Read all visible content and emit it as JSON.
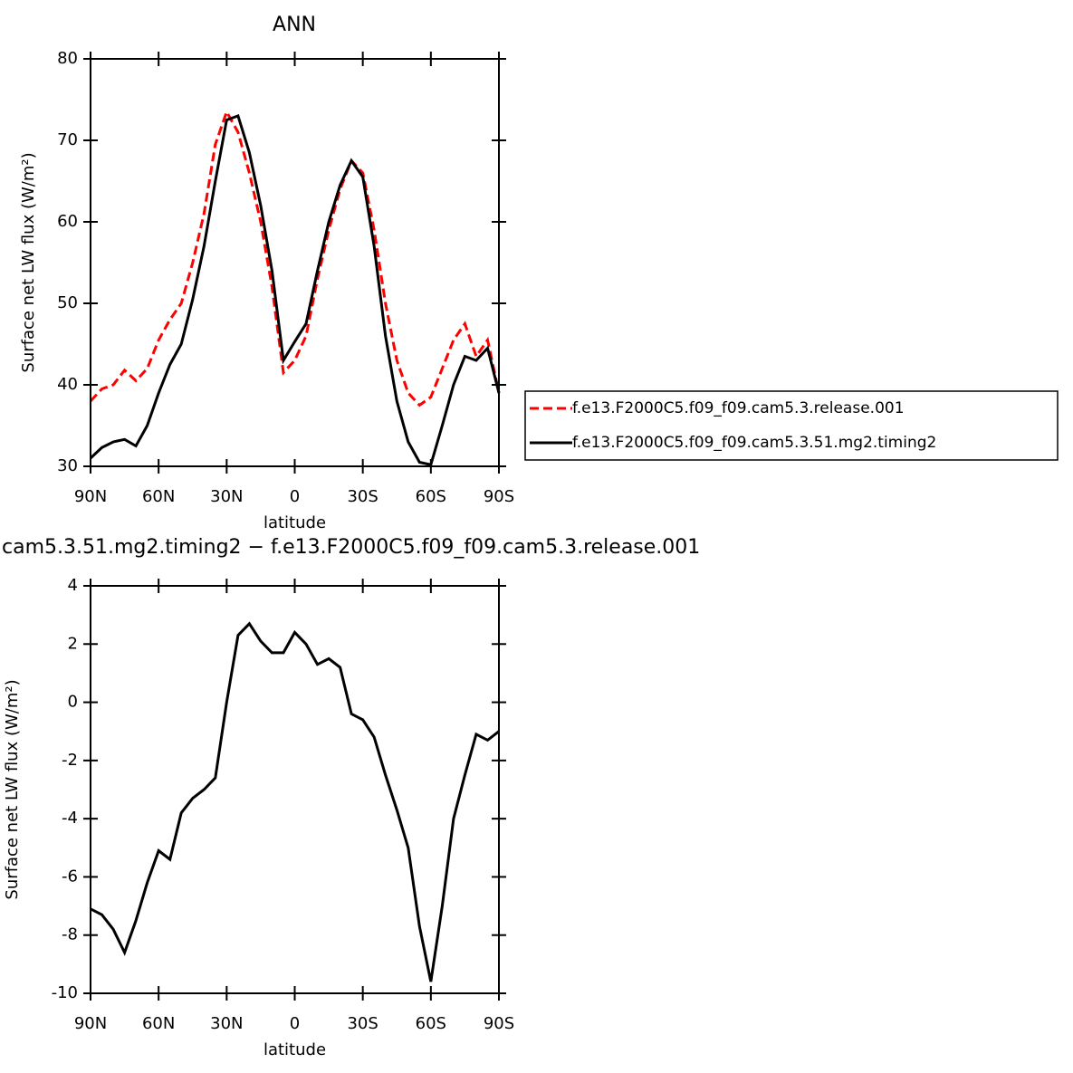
{
  "chart_data": [
    {
      "type": "line",
      "title": "ANN",
      "xlabel": "latitude",
      "ylabel": "Surface net LW flux (W/m²)",
      "x": [
        90,
        85,
        80,
        75,
        70,
        65,
        60,
        55,
        50,
        45,
        40,
        35,
        30,
        25,
        20,
        15,
        10,
        5,
        0,
        -5,
        -10,
        -15,
        -20,
        -25,
        -30,
        -35,
        -40,
        -45,
        -50,
        -55,
        -60,
        -65,
        -70,
        -75,
        -80,
        -85,
        -90
      ],
      "xlim": [
        90,
        -90
      ],
      "xticks": [
        {
          "value": 90,
          "label": "90N"
        },
        {
          "value": 60,
          "label": "60N"
        },
        {
          "value": 30,
          "label": "30N"
        },
        0,
        {
          "value": -30,
          "label": "30S"
        },
        {
          "value": -60,
          "label": "60S"
        },
        {
          "value": -90,
          "label": "90S"
        }
      ],
      "ylim": [
        30,
        80
      ],
      "yticks": [
        30,
        40,
        50,
        60,
        70,
        80
      ],
      "legend": "right",
      "series": [
        {
          "name": "f.e13.F2000C5.f09_f09.cam5.3.release.001",
          "color": "#ff0000",
          "dash": "dashed",
          "values": [
            38,
            39.5,
            40,
            41.8,
            40.5,
            42,
            45.5,
            48,
            50,
            55,
            61,
            69.5,
            73.5,
            71,
            66,
            60,
            52,
            41.5,
            43,
            46,
            53,
            59,
            64,
            67.5,
            66,
            59,
            50,
            43,
            39,
            37.5,
            38.5,
            42,
            45.5,
            47.5,
            43.5,
            45.5,
            39
          ]
        },
        {
          "name": "f.e13.F2000C5.f09_f09.cam5.3.51.mg2.timing2",
          "color": "#000000",
          "dash": "solid",
          "values": [
            31,
            32.3,
            33,
            33.3,
            32.5,
            35,
            39,
            42.5,
            45,
            50.5,
            57,
            65,
            72.5,
            73,
            68.5,
            62,
            54,
            43,
            45.3,
            47.5,
            54,
            60,
            64.5,
            67.5,
            65.5,
            57,
            46,
            38,
            33,
            30.5,
            30.2,
            35,
            40,
            43.5,
            43,
            44.5,
            39
          ]
        }
      ]
    },
    {
      "type": "line",
      "title": "cam5.3.51.mg2.timing2 − f.e13.F2000C5.f09_f09.cam5.3.release.001",
      "xlabel": "latitude",
      "ylabel": "Surface net LW flux (W/m²)",
      "x": [
        90,
        85,
        80,
        75,
        70,
        65,
        60,
        55,
        50,
        45,
        40,
        35,
        30,
        25,
        20,
        15,
        10,
        5,
        0,
        -5,
        -10,
        -15,
        -20,
        -25,
        -30,
        -35,
        -40,
        -45,
        -50,
        -55,
        -60,
        -65,
        -70,
        -75,
        -80,
        -85,
        -90
      ],
      "xlim": [
        90,
        -90
      ],
      "xticks": [
        {
          "value": 90,
          "label": "90N"
        },
        {
          "value": 60,
          "label": "60N"
        },
        {
          "value": 30,
          "label": "30N"
        },
        0,
        {
          "value": -30,
          "label": "30S"
        },
        {
          "value": -60,
          "label": "60S"
        },
        {
          "value": -90,
          "label": "90S"
        }
      ],
      "ylim": [
        -10,
        4
      ],
      "yticks": [
        -10,
        -8,
        -6,
        -4,
        -2,
        0,
        2,
        4
      ],
      "series": [
        {
          "color": "#000000",
          "dash": "solid",
          "values": [
            -7.1,
            -7.3,
            -7.8,
            -8.6,
            -7.5,
            -6.2,
            -5.1,
            -5.4,
            -3.8,
            -3.3,
            -3.0,
            -2.6,
            0,
            2.3,
            2.7,
            2.1,
            1.7,
            1.7,
            2.4,
            2.0,
            1.3,
            1.5,
            1.2,
            -0.4,
            -0.6,
            -1.2,
            -2.5,
            -3.7,
            -5,
            -7.7,
            -9.6,
            -7,
            -4,
            -2.5,
            -1.1,
            -1.3,
            -1.0
          ]
        }
      ]
    }
  ]
}
